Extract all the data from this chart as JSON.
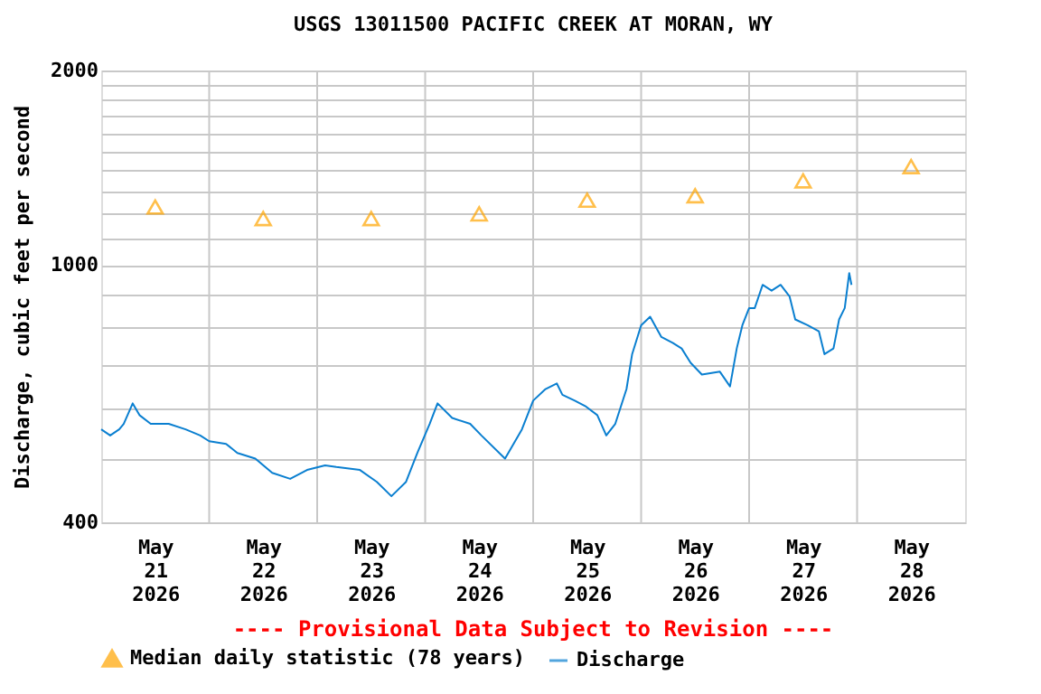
{
  "chart_data": {
    "type": "line",
    "title": "USGS 13011500 PACIFIC CREEK AT MORAN, WY",
    "ylabel": "Discharge, cubic feet per second",
    "annotations": [
      "---- Provisional Data Subject to Revision ----"
    ],
    "log": "y",
    "grid": true,
    "legend": "bottom",
    "xlim": [
      "2026-05-21T00:00",
      "2026-05-29T00:00"
    ],
    "xticks": [
      {
        "value": "2026-05-21T12:00",
        "label": "May\n21\n2026"
      },
      {
        "value": "2026-05-22T00:00",
        "label": null
      },
      {
        "value": "2026-05-22T12:00",
        "label": "May\n22\n2026"
      },
      {
        "value": "2026-05-23T00:00",
        "label": null
      },
      {
        "value": "2026-05-23T12:00",
        "label": "May\n23\n2026"
      },
      {
        "value": "2026-05-24T00:00",
        "label": null
      },
      {
        "value": "2026-05-24T12:00",
        "label": "May\n24\n2026"
      },
      {
        "value": "2026-05-25T00:00",
        "label": null
      },
      {
        "value": "2026-05-25T12:00",
        "label": "May\n25\n2026"
      },
      {
        "value": "2026-05-26T00:00",
        "label": null
      },
      {
        "value": "2026-05-26T12:00",
        "label": "May\n26\n2026"
      },
      {
        "value": "2026-05-27T00:00",
        "label": null
      },
      {
        "value": "2026-05-27T12:00",
        "label": "May\n27\n2026"
      },
      {
        "value": "2026-05-28T00:00",
        "label": null
      },
      {
        "value": "2026-05-28T12:00",
        "label": "May\n28\n2026"
      }
    ],
    "ylim": [
      400,
      2000
    ],
    "yticks": [
      400,
      {
        "value": 500,
        "label": null
      },
      {
        "value": 600,
        "label": null
      },
      {
        "value": 700,
        "label": null
      },
      {
        "value": 800,
        "label": null
      },
      {
        "value": 900,
        "label": null
      },
      1000,
      {
        "value": 1100,
        "label": null
      },
      {
        "value": 1200,
        "label": null
      },
      {
        "value": 1300,
        "label": null
      },
      {
        "value": 1400,
        "label": null
      },
      {
        "value": 1500,
        "label": null
      },
      {
        "value": 1600,
        "label": null
      },
      {
        "value": 1700,
        "label": null
      },
      {
        "value": 1800,
        "label": null
      },
      {
        "value": 1900,
        "label": null
      },
      2000
    ],
    "series": [
      {
        "name": "Median daily statistic (78 years)",
        "type": "scatter",
        "marker": "triangle",
        "color": "#ffa500",
        "x": [
          "2026-05-21T12:00",
          "2026-05-22T12:00",
          "2026-05-23T12:00",
          "2026-05-24T12:00",
          "2026-05-25T12:00",
          "2026-05-26T12:00",
          "2026-05-27T12:00",
          "2026-05-28T12:00"
        ],
        "values": [
          1230,
          1180,
          1180,
          1200,
          1260,
          1280,
          1350,
          1420
        ]
      },
      {
        "name": "Discharge",
        "type": "line",
        "line_style": "solid",
        "color": "#0a7fd0",
        "x": [
          "2026-05-21T00:00",
          "2026-05-21T02:00",
          "2026-05-21T04:00",
          "2026-05-21T05:00",
          "2026-05-21T07:00",
          "2026-05-21T08:30",
          "2026-05-21T11:00",
          "2026-05-21T15:00",
          "2026-05-21T18:45",
          "2026-05-21T22:00",
          "2026-05-22T00:00",
          "2026-05-22T03:45",
          "2026-05-22T06:15",
          "2026-05-22T10:15",
          "2026-05-22T14:00",
          "2026-05-22T18:00",
          "2026-05-22T21:45",
          "2026-05-23T01:45",
          "2026-05-23T04:15",
          "2026-05-23T09:30",
          "2026-05-23T13:15",
          "2026-05-23T16:30",
          "2026-05-23T19:45",
          "2026-05-23T22:15",
          "2026-05-24T01:00",
          "2026-05-24T02:45",
          "2026-05-24T06:00",
          "2026-05-24T10:00",
          "2026-05-24T12:30",
          "2026-05-24T17:45",
          "2026-05-24T21:30",
          "2026-05-25T00:00",
          "2026-05-25T02:45",
          "2026-05-25T05:15",
          "2026-05-25T06:30",
          "2026-05-25T09:15",
          "2026-05-25T11:45",
          "2026-05-25T14:15",
          "2026-05-25T16:15",
          "2026-05-25T18:15",
          "2026-05-25T20:45",
          "2026-05-25T22:00",
          "2026-05-26T00:00",
          "2026-05-26T02:00",
          "2026-05-26T04:30",
          "2026-05-26T07:00",
          "2026-05-26T09:00",
          "2026-05-26T11:00",
          "2026-05-26T13:30",
          "2026-05-26T17:30",
          "2026-05-26T19:45",
          "2026-05-26T21:15",
          "2026-05-26T22:30",
          "2026-05-27T00:00",
          "2026-05-27T01:15",
          "2026-05-27T03:00",
          "2026-05-27T05:00",
          "2026-05-27T07:00",
          "2026-05-27T09:00",
          "2026-05-27T10:15",
          "2026-05-27T13:00",
          "2026-05-27T15:30",
          "2026-05-27T16:45",
          "2026-05-27T18:45",
          "2026-05-27T20:00",
          "2026-05-27T21:15",
          "2026-05-27T22:15",
          "2026-05-27T22:45"
        ],
        "values": [
          557,
          545,
          557,
          568,
          611,
          586,
          568,
          568,
          557,
          545,
          534,
          529,
          512,
          502,
          477,
          467,
          482,
          490,
          487,
          482,
          462,
          439,
          462,
          512,
          568,
          611,
          580,
          568,
          545,
          502,
          557,
          617,
          643,
          656,
          630,
          617,
          604,
          586,
          545,
          568,
          643,
          728,
          807,
          832,
          774,
          758,
          743,
          706,
          677,
          684,
          649,
          743,
          807,
          858,
          858,
          932,
          913,
          932,
          894,
          824,
          807,
          790,
          728,
          743,
          824,
          858,
          972,
          932
        ]
      }
    ]
  }
}
